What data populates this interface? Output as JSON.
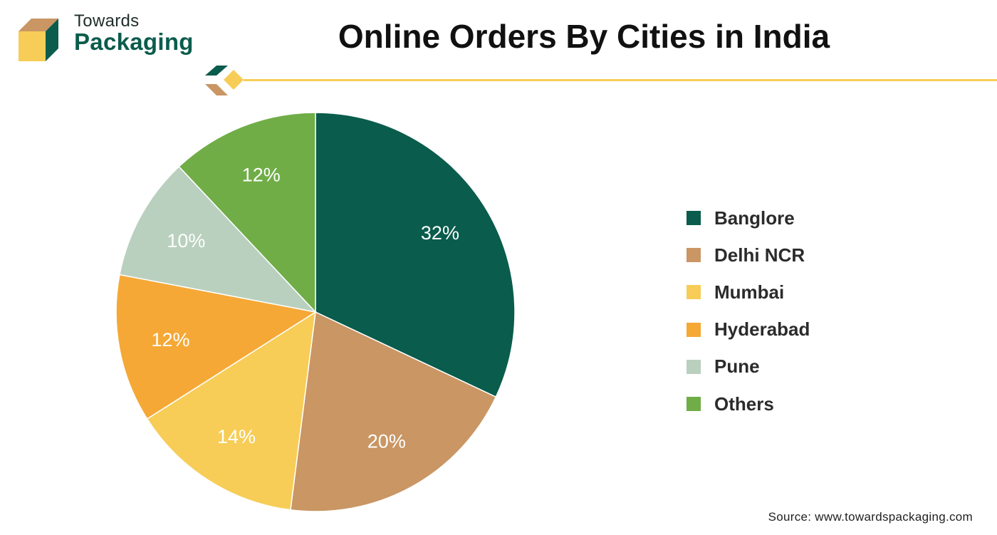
{
  "brand": {
    "name_top": "Towards",
    "name_bottom": "Packaging"
  },
  "colors": {
    "brand_green": "#0b5c4c",
    "brand_tan": "#c99664",
    "brand_yellow": "#f7cd57",
    "divider_yellow": "#f7cd57"
  },
  "chart_data": {
    "type": "pie",
    "title": "Online Orders By Cities in India",
    "categories": [
      "Banglore",
      "Delhi NCR",
      "Mumbai",
      "Hyderabad",
      "Pune",
      "Others"
    ],
    "values": [
      32,
      20,
      14,
      12,
      10,
      12
    ],
    "labels": [
      "32%",
      "20%",
      "14%",
      "12%",
      "10%",
      "12%"
    ],
    "colors": [
      "#0a5c4c",
      "#c99664",
      "#f7cd57",
      "#f5a836",
      "#b9d0be",
      "#70ad47"
    ],
    "legend_position": "right",
    "start": "top, clockwise"
  },
  "source": "Source: www.towardspackaging.com"
}
